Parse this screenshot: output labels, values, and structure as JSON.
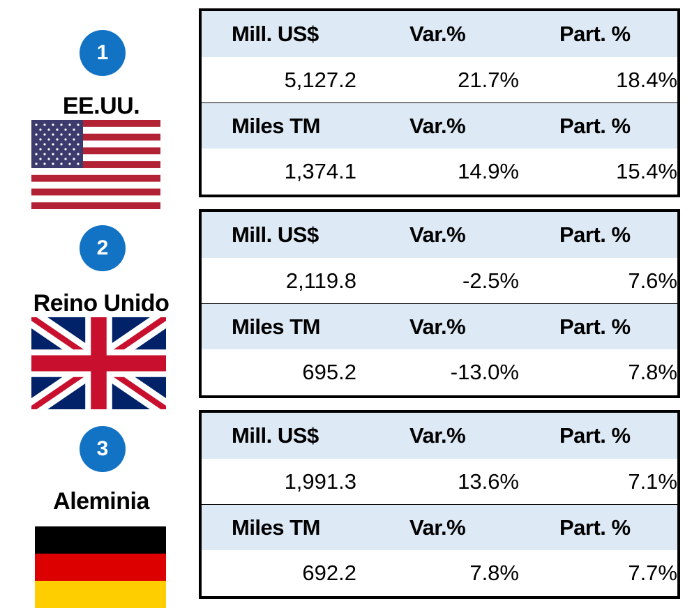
{
  "countries": [
    {
      "rank": "1",
      "name": "EE.UU.",
      "rows": [
        {
          "headers": [
            "Mill. US$",
            "Var.%",
            "Part. %"
          ],
          "values": [
            "5,127.2",
            "21.7%",
            "18.4%"
          ]
        },
        {
          "headers": [
            "Miles TM",
            "Var.%",
            "Part. %"
          ],
          "values": [
            "1,374.1",
            "14.9%",
            "15.4%"
          ]
        }
      ]
    },
    {
      "rank": "2",
      "name": "Reino Unido",
      "rows": [
        {
          "headers": [
            "Mill. US$",
            "Var.%",
            "Part. %"
          ],
          "values": [
            "2,119.8",
            "-2.5%",
            "7.6%"
          ]
        },
        {
          "headers": [
            "Miles TM",
            "Var.%",
            "Part. %"
          ],
          "values": [
            "695.2",
            "-13.0%",
            "7.8%"
          ]
        }
      ]
    },
    {
      "rank": "3",
      "name": "Aleminia",
      "rows": [
        {
          "headers": [
            "Mill. US$",
            "Var.%",
            "Part. %"
          ],
          "values": [
            "1,991.3",
            "13.6%",
            "7.1%"
          ]
        },
        {
          "headers": [
            "Miles TM",
            "Var.%",
            "Part. %"
          ],
          "values": [
            "692.2",
            "7.8%",
            "7.7%"
          ]
        }
      ]
    }
  ]
}
